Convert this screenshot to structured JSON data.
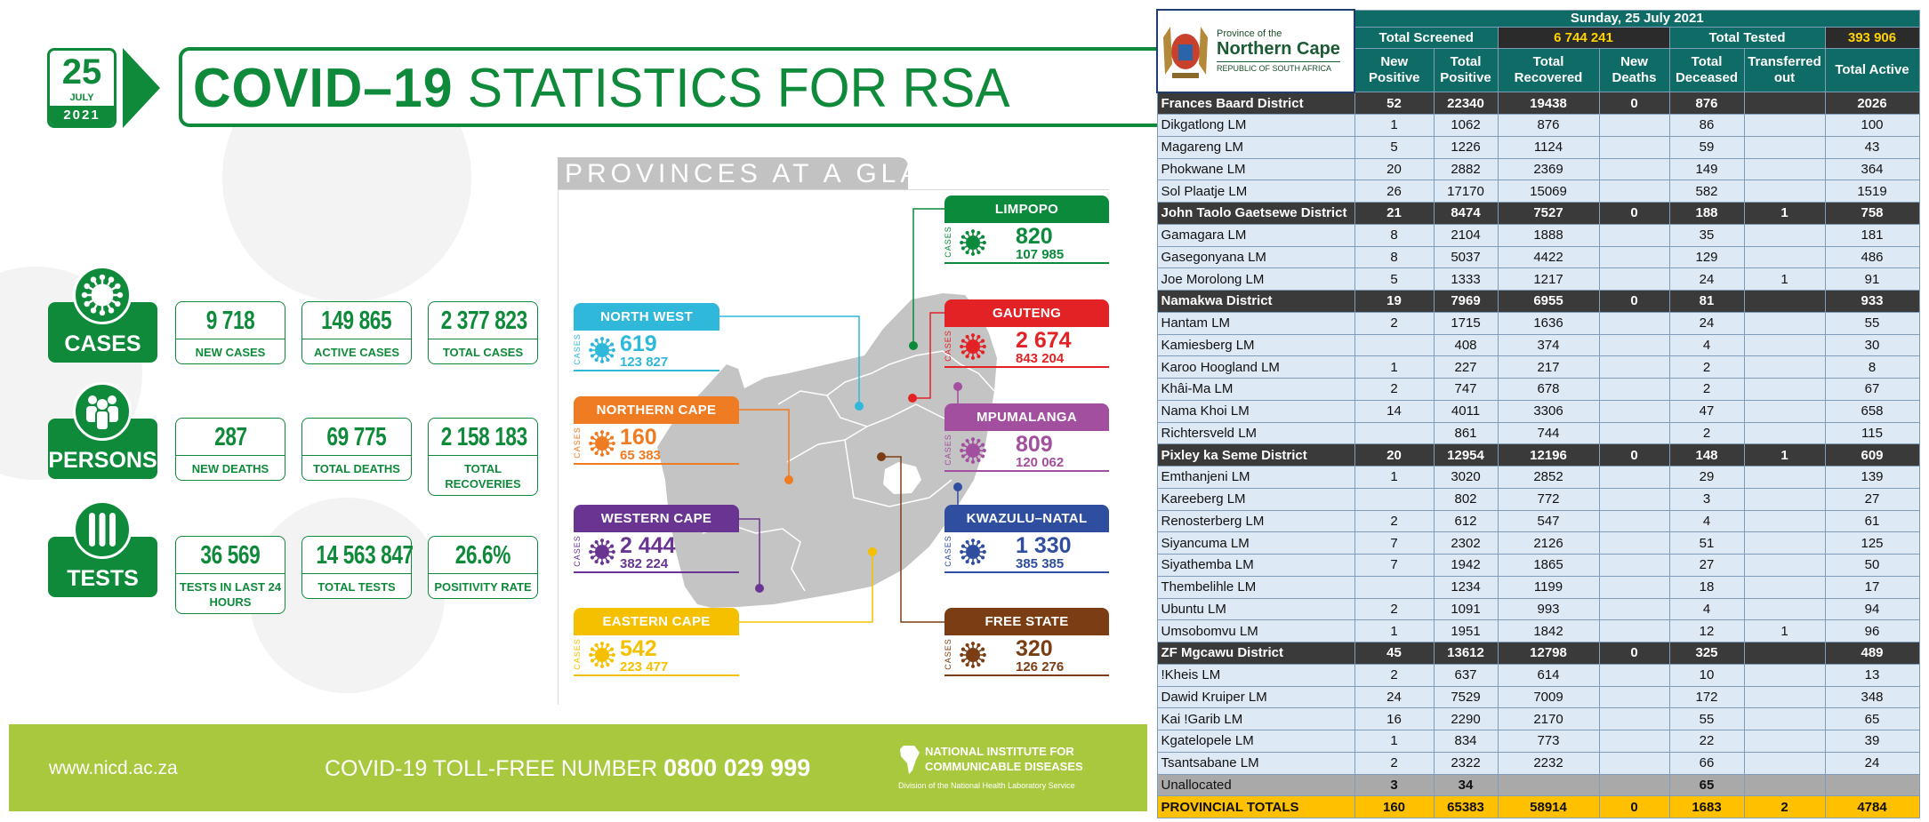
{
  "header": {
    "date_day": "25",
    "date_month": "JULY",
    "date_year": "2021",
    "title_bold": "COVID–19",
    "title_rest": "STATISTICS FOR RSA"
  },
  "colors": {
    "brand_green": "#0e8a3a",
    "footer_green": "#a8c93e",
    "table_teal": "#0f6b66",
    "totals_yellow": "#ffc000"
  },
  "stats": [
    {
      "category": "CASES",
      "icon": "virus-icon",
      "boxes": [
        {
          "value": "9 718",
          "label": "NEW CASES"
        },
        {
          "value": "149 865",
          "label": "ACTIVE CASES"
        },
        {
          "value": "2 377 823",
          "label": "TOTAL CASES"
        }
      ]
    },
    {
      "category": "PERSONS",
      "icon": "people-icon",
      "boxes": [
        {
          "value": "287",
          "label": "NEW DEATHS"
        },
        {
          "value": "69 775",
          "label": "TOTAL DEATHS"
        },
        {
          "value": "2 158 183",
          "label": "TOTAL RECOVERIES"
        }
      ]
    },
    {
      "category": "TESTS",
      "icon": "test-tubes-icon",
      "boxes": [
        {
          "value": "36 569",
          "label": "TESTS IN LAST 24 HOURS"
        },
        {
          "value": "14 563 847",
          "label": "TOTAL TESTS"
        },
        {
          "value": "26.6%",
          "label": "POSITIVITY RATE"
        }
      ]
    }
  ],
  "provinces": {
    "title": "PROVINCES AT A GLANCE",
    "cases_label": "CASES",
    "items": [
      {
        "name": "LIMPOPO",
        "new": "820",
        "total": "107 985",
        "color": "#0a8a3a"
      },
      {
        "name": "NORTH WEST",
        "new": "619",
        "total": "123 827",
        "color": "#2fb8da"
      },
      {
        "name": "GAUTENG",
        "new": "2 674",
        "total": "843 204",
        "color": "#e32226"
      },
      {
        "name": "NORTHERN CAPE",
        "new": "160",
        "total": "65 383",
        "color": "#ef7b22"
      },
      {
        "name": "MPUMALANGA",
        "new": "809",
        "total": "120 062",
        "color": "#a24f9f"
      },
      {
        "name": "WESTERN CAPE",
        "new": "2 444",
        "total": "382 224",
        "color": "#6a3592"
      },
      {
        "name": "KWAZULU–NATAL",
        "new": "1 330",
        "total": "385 385",
        "color": "#2f4ea0"
      },
      {
        "name": "EASTERN CAPE",
        "new": "542",
        "total": "223 477",
        "color": "#f5c000"
      },
      {
        "name": "FREE STATE",
        "new": "320",
        "total": "126 276",
        "color": "#7b3e14"
      }
    ]
  },
  "footer": {
    "url": "www.nicd.ac.za",
    "toll_free_label": "COVID-19 TOLL-FREE NUMBER",
    "toll_free_number": "0800 029 999",
    "institute": "NATIONAL INSTITUTE FOR COMMUNICABLE DISEASES",
    "division": "Division of the National Health Laboratory Service"
  },
  "table": {
    "logo_text": [
      "Province of the",
      "Northern Cape",
      "REPUBLIC OF SOUTH AFRICA"
    ],
    "date": "Sunday, 25 July 2021",
    "total_screened_label": "Total Screened",
    "total_screened": "6 744 241",
    "total_tested_label": "Total Tested",
    "total_tested": "393 906",
    "columns": [
      "New Positive",
      "Total Positive",
      "Total Recovered",
      "New Deaths",
      "Total Deceased",
      "Transferred out",
      "Total Active"
    ],
    "rows": [
      {
        "type": "district",
        "name": "Frances Baard District",
        "values": [
          "52",
          "22340",
          "19438",
          "0",
          "876",
          "",
          "2026"
        ]
      },
      {
        "type": "lm",
        "name": "Dikgatlong LM",
        "values": [
          "1",
          "1062",
          "876",
          "",
          "86",
          "",
          "100"
        ]
      },
      {
        "type": "lm",
        "name": "Magareng LM",
        "values": [
          "5",
          "1226",
          "1124",
          "",
          "59",
          "",
          "43"
        ]
      },
      {
        "type": "lm",
        "name": "Phokwane LM",
        "values": [
          "20",
          "2882",
          "2369",
          "",
          "149",
          "",
          "364"
        ]
      },
      {
        "type": "lm",
        "name": "Sol Plaatje LM",
        "values": [
          "26",
          "17170",
          "15069",
          "",
          "582",
          "",
          "1519"
        ]
      },
      {
        "type": "district",
        "name": "John Taolo Gaetsewe District",
        "values": [
          "21",
          "8474",
          "7527",
          "0",
          "188",
          "1",
          "758"
        ]
      },
      {
        "type": "lm",
        "name": "Gamagara LM",
        "values": [
          "8",
          "2104",
          "1888",
          "",
          "35",
          "",
          "181"
        ]
      },
      {
        "type": "lm",
        "name": "Gasegonyana LM",
        "values": [
          "8",
          "5037",
          "4422",
          "",
          "129",
          "",
          "486"
        ]
      },
      {
        "type": "lm",
        "name": "Joe Morolong LM",
        "values": [
          "5",
          "1333",
          "1217",
          "",
          "24",
          "1",
          "91"
        ]
      },
      {
        "type": "district",
        "name": "Namakwa District",
        "values": [
          "19",
          "7969",
          "6955",
          "0",
          "81",
          "",
          "933"
        ]
      },
      {
        "type": "lm",
        "name": "Hantam LM",
        "values": [
          "2",
          "1715",
          "1636",
          "",
          "24",
          "",
          "55"
        ]
      },
      {
        "type": "lm",
        "name": "Kamiesberg LM",
        "values": [
          "",
          "408",
          "374",
          "",
          "4",
          "",
          "30"
        ]
      },
      {
        "type": "lm",
        "name": "Karoo Hoogland LM",
        "values": [
          "1",
          "227",
          "217",
          "",
          "2",
          "",
          "8"
        ]
      },
      {
        "type": "lm",
        "name": "Khâi-Ma LM",
        "values": [
          "2",
          "747",
          "678",
          "",
          "2",
          "",
          "67"
        ]
      },
      {
        "type": "lm",
        "name": "Nama Khoi LM",
        "values": [
          "14",
          "4011",
          "3306",
          "",
          "47",
          "",
          "658"
        ]
      },
      {
        "type": "lm",
        "name": "Richtersveld LM",
        "values": [
          "",
          "861",
          "744",
          "",
          "2",
          "",
          "115"
        ]
      },
      {
        "type": "district",
        "name": "Pixley ka Seme District",
        "values": [
          "20",
          "12954",
          "12196",
          "0",
          "148",
          "1",
          "609"
        ]
      },
      {
        "type": "lm",
        "name": "Emthanjeni LM",
        "values": [
          "1",
          "3020",
          "2852",
          "",
          "29",
          "",
          "139"
        ]
      },
      {
        "type": "lm",
        "name": "Kareeberg LM",
        "values": [
          "",
          "802",
          "772",
          "",
          "3",
          "",
          "27"
        ]
      },
      {
        "type": "lm",
        "name": "Renosterberg LM",
        "values": [
          "2",
          "612",
          "547",
          "",
          "4",
          "",
          "61"
        ]
      },
      {
        "type": "lm",
        "name": "Siyancuma LM",
        "values": [
          "7",
          "2302",
          "2126",
          "",
          "51",
          "",
          "125"
        ]
      },
      {
        "type": "lm",
        "name": "Siyathemba LM",
        "values": [
          "7",
          "1942",
          "1865",
          "",
          "27",
          "",
          "50"
        ]
      },
      {
        "type": "lm",
        "name": "Thembelihle LM",
        "values": [
          "",
          "1234",
          "1199",
          "",
          "18",
          "",
          "17"
        ]
      },
      {
        "type": "lm",
        "name": "Ubuntu LM",
        "values": [
          "2",
          "1091",
          "993",
          "",
          "4",
          "",
          "94"
        ]
      },
      {
        "type": "lm",
        "name": "Umsobomvu LM",
        "values": [
          "1",
          "1951",
          "1842",
          "",
          "12",
          "1",
          "96"
        ]
      },
      {
        "type": "district",
        "name": "ZF Mgcawu District",
        "values": [
          "45",
          "13612",
          "12798",
          "0",
          "325",
          "",
          "489"
        ]
      },
      {
        "type": "lm",
        "name": "!Kheis LM",
        "values": [
          "2",
          "637",
          "614",
          "",
          "10",
          "",
          "13"
        ]
      },
      {
        "type": "lm",
        "name": "Dawid Kruiper LM",
        "values": [
          "24",
          "7529",
          "7009",
          "",
          "172",
          "",
          "348"
        ]
      },
      {
        "type": "lm",
        "name": "Kai !Garib LM",
        "values": [
          "16",
          "2290",
          "2170",
          "",
          "55",
          "",
          "65"
        ]
      },
      {
        "type": "lm",
        "name": "Kgatelopele LM",
        "values": [
          "1",
          "834",
          "773",
          "",
          "22",
          "",
          "39"
        ]
      },
      {
        "type": "lm",
        "name": "Tsantsabane LM",
        "values": [
          "2",
          "2322",
          "2232",
          "",
          "66",
          "",
          "24"
        ]
      },
      {
        "type": "unalloc",
        "name": "Unallocated",
        "values": [
          "3",
          "34",
          "",
          "",
          "65",
          "",
          ""
        ]
      },
      {
        "type": "totals",
        "name": "PROVINCIAL TOTALS",
        "values": [
          "160",
          "65383",
          "58914",
          "0",
          "1683",
          "2",
          "4784"
        ]
      }
    ]
  }
}
